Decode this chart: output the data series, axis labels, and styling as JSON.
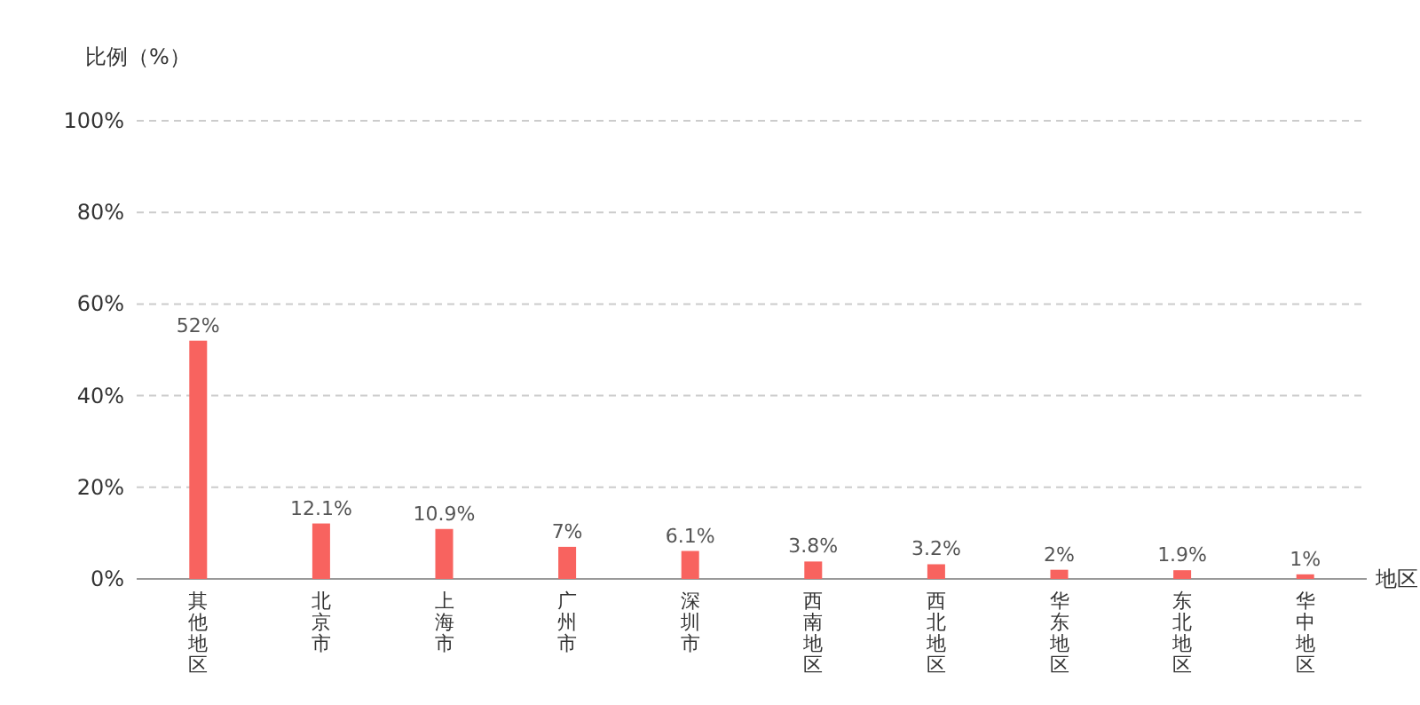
{
  "chart_data": {
    "type": "bar",
    "ylabel": "比例（%）",
    "xlabel": "地区",
    "categories": [
      "其他地区",
      "北京市",
      "上海市",
      "广州市",
      "深圳市",
      "西南地区",
      "西北地区",
      "华东地区",
      "东北地区",
      "华中地区"
    ],
    "values": [
      52,
      12.1,
      10.9,
      7,
      6.1,
      3.8,
      3.2,
      2,
      1.9,
      1
    ],
    "value_labels": [
      "52%",
      "12.1%",
      "10.9%",
      "7%",
      "6.1%",
      "3.8%",
      "3.2%",
      "2%",
      "1.9%",
      "1%"
    ],
    "color": "#f8635f",
    "ylim": [
      0,
      100
    ],
    "yticks": [
      {
        "value": 0,
        "label": "0%"
      },
      {
        "value": 20,
        "label": "20%"
      },
      {
        "value": 40,
        "label": "40%"
      },
      {
        "value": 60,
        "label": "60%"
      },
      {
        "value": 80,
        "label": "80%"
      },
      {
        "value": 100,
        "label": "100%"
      }
    ],
    "grid": "y"
  }
}
